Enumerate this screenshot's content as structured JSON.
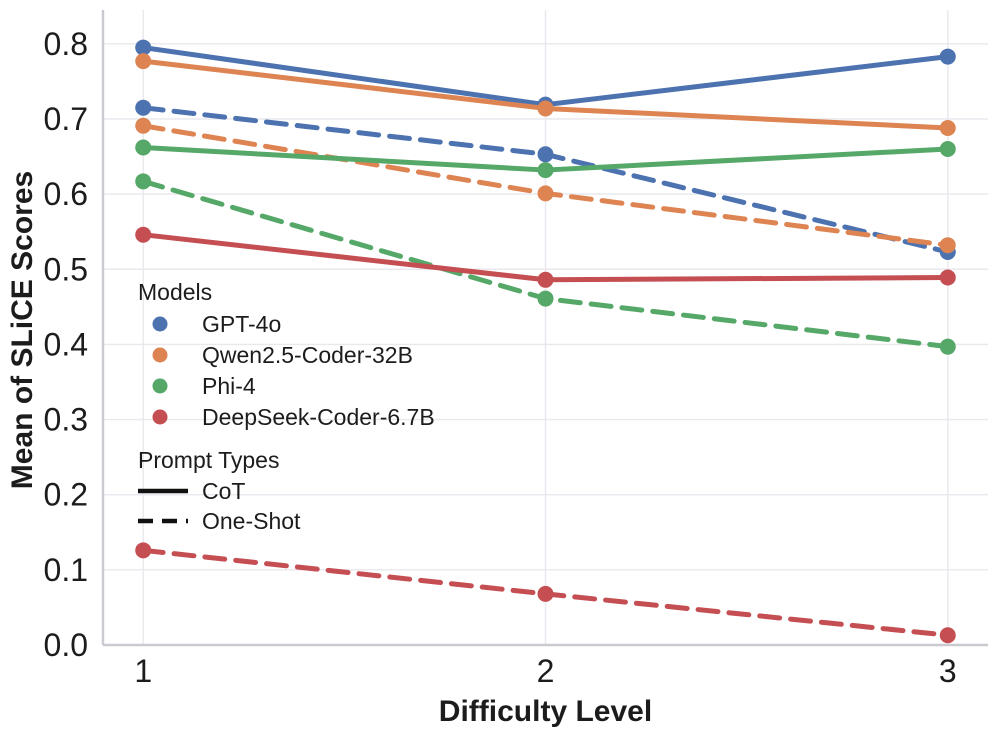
{
  "chart_data": {
    "type": "line",
    "x": [
      1,
      2,
      3
    ],
    "xlabel": "Difficulty Level",
    "ylabel": "Mean of SLiCE Scores",
    "xticks": [
      "1",
      "2",
      "3"
    ],
    "yticks": [
      "0.0",
      "0.1",
      "0.2",
      "0.3",
      "0.4",
      "0.5",
      "0.6",
      "0.7",
      "0.8"
    ],
    "xlim": [
      0.9,
      3.1
    ],
    "ylim": [
      0.0,
      0.845
    ],
    "grid": true,
    "legend_position": "inside-left-middle",
    "series": [
      {
        "model": "GPT-4o",
        "prompt_type": "CoT",
        "style": "solid",
        "color": "#4C72B0",
        "values": [
          0.795,
          0.719,
          0.783
        ]
      },
      {
        "model": "GPT-4o",
        "prompt_type": "One-Shot",
        "style": "dashed",
        "color": "#4C72B0",
        "values": [
          0.715,
          0.653,
          0.523
        ]
      },
      {
        "model": "Qwen2.5-Coder-32B",
        "prompt_type": "CoT",
        "style": "solid",
        "color": "#DD8452",
        "values": [
          0.777,
          0.714,
          0.688
        ]
      },
      {
        "model": "Qwen2.5-Coder-32B",
        "prompt_type": "One-Shot",
        "style": "dashed",
        "color": "#DD8452",
        "values": [
          0.691,
          0.601,
          0.532
        ]
      },
      {
        "model": "Phi-4",
        "prompt_type": "CoT",
        "style": "solid",
        "color": "#55A868",
        "values": [
          0.662,
          0.632,
          0.66
        ]
      },
      {
        "model": "Phi-4",
        "prompt_type": "One-Shot",
        "style": "dashed",
        "color": "#55A868",
        "values": [
          0.617,
          0.461,
          0.397
        ]
      },
      {
        "model": "DeepSeek-Coder-6.7B",
        "prompt_type": "CoT",
        "style": "solid",
        "color": "#C44E52",
        "values": [
          0.546,
          0.486,
          0.489
        ]
      },
      {
        "model": "DeepSeek-Coder-6.7B",
        "prompt_type": "One-Shot",
        "style": "dashed",
        "color": "#C44E52",
        "values": [
          0.126,
          0.068,
          0.013
        ]
      }
    ],
    "legend": {
      "models_title": "Models",
      "models": [
        {
          "label": "GPT-4o",
          "color": "#4C72B0"
        },
        {
          "label": "Qwen2.5-Coder-32B",
          "color": "#DD8452"
        },
        {
          "label": "Phi-4",
          "color": "#55A868"
        },
        {
          "label": "DeepSeek-Coder-6.7B",
          "color": "#C44E52"
        }
      ],
      "prompt_types_title": "Prompt Types",
      "prompt_types": [
        {
          "label": "CoT",
          "style": "solid"
        },
        {
          "label": "One-Shot",
          "style": "dashed"
        }
      ]
    },
    "colors": {
      "grid": "#e8e8ee",
      "spine": "#cacad1",
      "text": "#1c1c1c",
      "legend_line": "#111111"
    }
  }
}
